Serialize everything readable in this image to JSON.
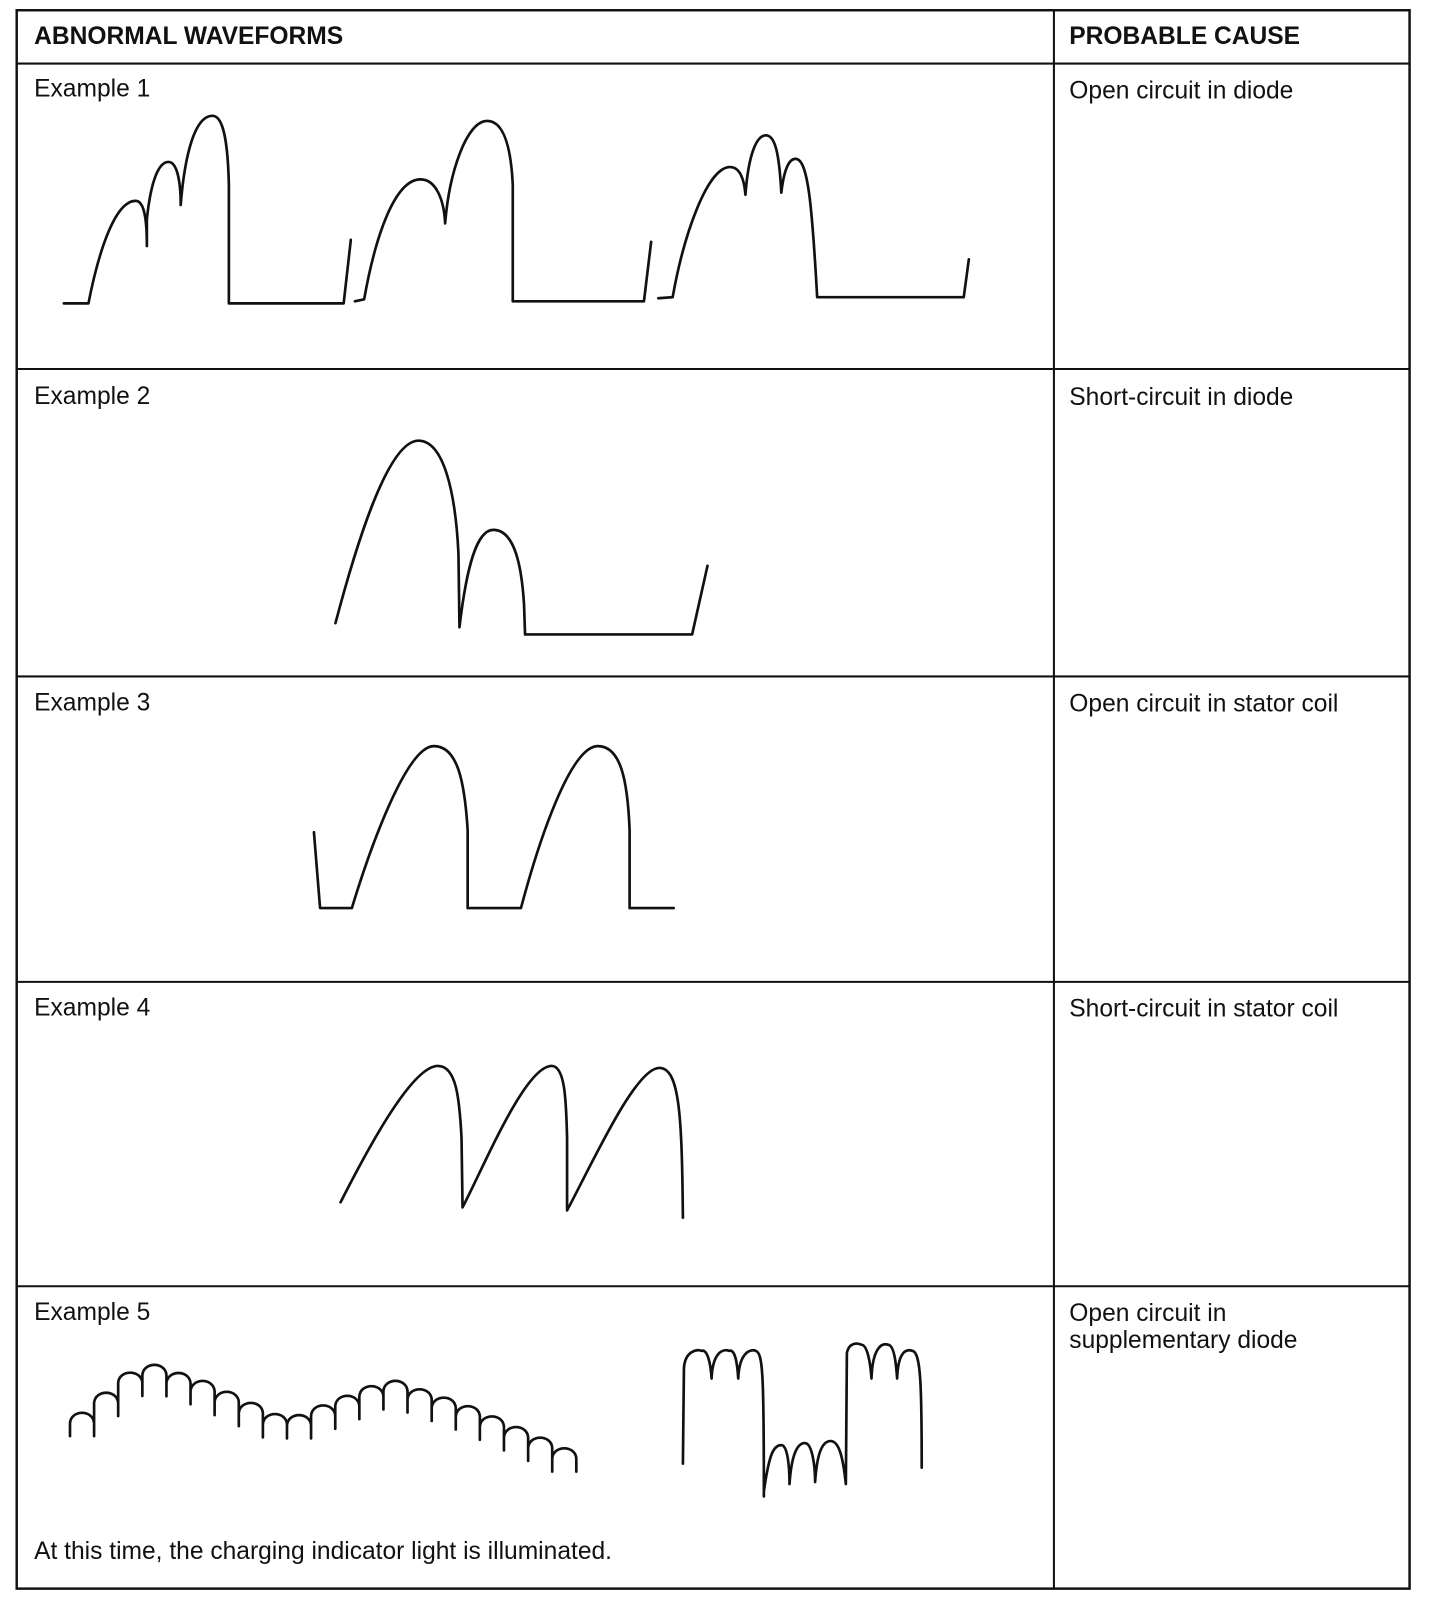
{
  "header": {
    "waveforms_label": "ABNORMAL WAVEFORMS",
    "cause_label": "PROBABLE CAUSE"
  },
  "rows": [
    {
      "label": "Example 1",
      "cause": [
        "Open circuit in diode"
      ]
    },
    {
      "label": "Example 2",
      "cause": [
        "Short-circuit in diode"
      ]
    },
    {
      "label": "Example 3",
      "cause": [
        "Open circuit in stator coil"
      ]
    },
    {
      "label": "Example 4",
      "cause": [
        "Short-circuit in stator coil"
      ]
    },
    {
      "label": "Example 5",
      "cause": [
        "Open circuit in",
        "supplementary diode"
      ]
    }
  ],
  "footnote": "At this time, the charging indicator light is illuminated."
}
